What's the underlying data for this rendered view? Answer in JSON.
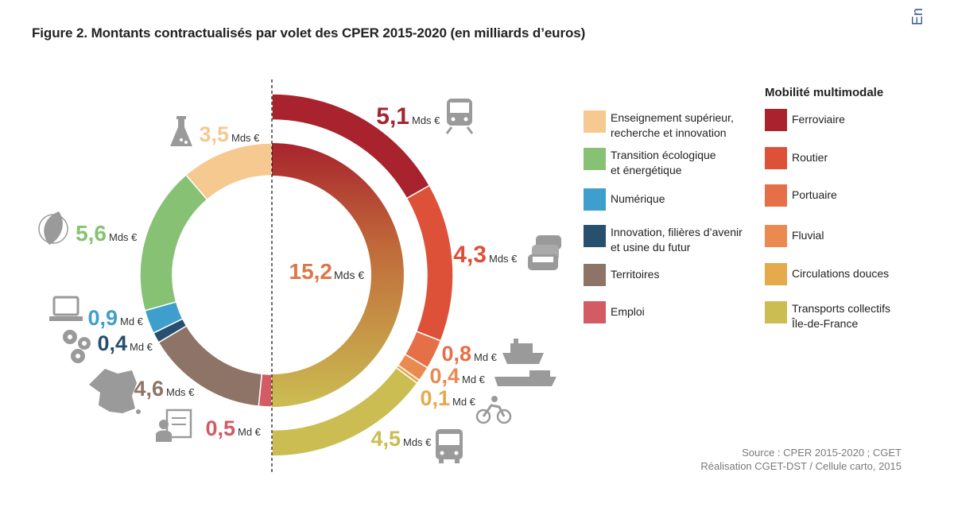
{
  "corner_label": "En",
  "chart_data": {
    "type": "pie",
    "title": "Figure 2. Montants contractualisés par volet des CPER 2015-2020 (en milliards d’euros)",
    "unit": "milliards d’euros",
    "inner_ring": {
      "label": "Mobilité multimodale",
      "total_value": "15,2",
      "total_unit": "Mds €",
      "slices": [
        {
          "key": "ferroviaire",
          "name": "Ferroviaire",
          "value": 5.1,
          "value_label": "5,1",
          "unit": "Mds €",
          "color": "#a8232e",
          "icon": "train-icon"
        },
        {
          "key": "routier",
          "name": "Routier",
          "value": 4.3,
          "value_label": "4,3",
          "unit": "Mds €",
          "color": "#dd5139",
          "icon": "cars-icon"
        },
        {
          "key": "portuaire",
          "name": "Portuaire",
          "value": 0.8,
          "value_label": "0,8",
          "unit": "Md €",
          "color": "#e57048",
          "icon": "ship-icon"
        },
        {
          "key": "fluvial",
          "name": "Fluvial",
          "value": 0.4,
          "value_label": "0,4",
          "unit": "Md €",
          "color": "#ea8a50",
          "icon": "barge-icon"
        },
        {
          "key": "circulations",
          "name": "Circulations douces",
          "value": 0.1,
          "value_label": "0,1",
          "unit": "Md €",
          "color": "#e5aa4c",
          "icon": "bicycle-icon"
        },
        {
          "key": "transports",
          "name": "Transports collectifs\nÎle-de-France",
          "value": 4.5,
          "value_label": "4,5",
          "unit": "Mds €",
          "color": "#cbbd52",
          "icon": "bus-icon"
        }
      ]
    },
    "outer_ring": {
      "slices": [
        {
          "key": "emploi",
          "name": "Emploi",
          "value": 0.5,
          "value_label": "0,5",
          "unit": "Md €",
          "color": "#d35b63",
          "icon": "form-icon"
        },
        {
          "key": "territoires",
          "name": "Territoires",
          "value": 4.6,
          "value_label": "4,6",
          "unit": "Mds €",
          "color": "#8d7466",
          "icon": "france-map-icon"
        },
        {
          "key": "innovation",
          "name": "Innovation, filières d’avenir\net usine du futur",
          "value": 0.4,
          "value_label": "0,4",
          "unit": "Md €",
          "color": "#274f6e",
          "icon": "gears-icon"
        },
        {
          "key": "numerique",
          "name": "Numérique",
          "value": 0.9,
          "value_label": "0,9",
          "unit": "Md €",
          "color": "#3e9fcc",
          "icon": "laptop-icon"
        },
        {
          "key": "transition",
          "name": "Transition écologique\net énergétique",
          "value": 5.6,
          "value_label": "5,6",
          "unit": "Mds €",
          "color": "#87c174",
          "icon": "leaf-icon"
        },
        {
          "key": "enseignement",
          "name": "Enseignement supérieur,\nrecherche et innovation",
          "value": 3.5,
          "value_label": "3,5",
          "unit": "Mds €",
          "color": "#f5c98f",
          "icon": "flask-icon"
        }
      ]
    },
    "legend": {
      "left": [
        "enseignement",
        "transition",
        "numerique",
        "innovation",
        "territoires",
        "emploi"
      ],
      "right_title": "Mobilité multimodale",
      "right": [
        "ferroviaire",
        "routier",
        "portuaire",
        "fluvial",
        "circulations",
        "transports"
      ]
    },
    "source": [
      "Source : CPER 2015-2020 ; CGET",
      "Réalisation CGET-DST / Cellule carto, 2015"
    ]
  }
}
